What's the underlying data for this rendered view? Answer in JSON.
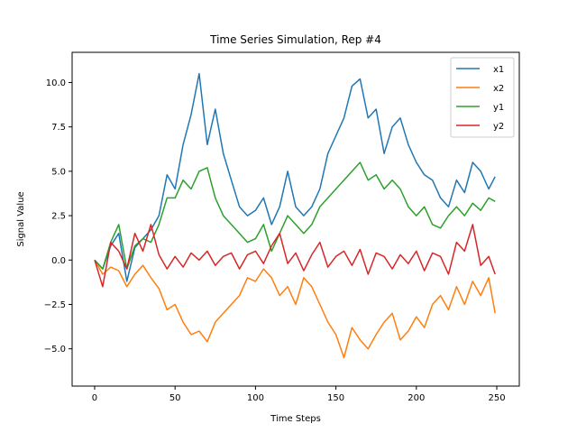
{
  "chart_data": {
    "type": "line",
    "title": "Time Series Simulation, Rep #4",
    "xlabel": "Time Steps",
    "ylabel": "Signal Value",
    "xlim": [
      -14,
      264
    ],
    "ylim": [
      -7.1,
      11.7
    ],
    "xticks": [
      0,
      50,
      100,
      150,
      200,
      250
    ],
    "yticks": [
      -5.0,
      -2.5,
      0.0,
      2.5,
      5.0,
      7.5,
      10.0
    ],
    "ytick_labels": [
      "−5.0",
      "−2.5",
      "0.0",
      "2.5",
      "5.0",
      "7.5",
      "10.0"
    ],
    "legend_position": "top-right",
    "grid": false,
    "series": [
      {
        "name": "x1",
        "color": "#1f77b4",
        "x": [
          0,
          5,
          10,
          15,
          20,
          25,
          30,
          35,
          40,
          45,
          50,
          55,
          60,
          65,
          70,
          75,
          80,
          85,
          90,
          95,
          100,
          105,
          110,
          115,
          120,
          125,
          130,
          135,
          140,
          145,
          150,
          155,
          160,
          165,
          170,
          175,
          180,
          185,
          190,
          195,
          200,
          205,
          210,
          215,
          220,
          225,
          230,
          235,
          240,
          245,
          249
        ],
        "y": [
          0.0,
          -0.5,
          0.8,
          1.5,
          -1.2,
          0.7,
          1.2,
          1.7,
          2.5,
          4.8,
          4.0,
          6.5,
          8.2,
          10.5,
          6.5,
          8.5,
          6.0,
          4.5,
          3.0,
          2.5,
          2.8,
          3.5,
          2.0,
          3.0,
          5.0,
          3.0,
          2.5,
          3.0,
          4.0,
          6.0,
          7.0,
          8.0,
          9.8,
          10.2,
          8.0,
          8.5,
          6.0,
          7.5,
          8.0,
          6.5,
          5.5,
          4.8,
          4.5,
          3.5,
          3.0,
          4.5,
          3.8,
          5.5,
          5.0,
          4.0,
          4.7
        ]
      },
      {
        "name": "x2",
        "color": "#ff7f0e",
        "x": [
          0,
          5,
          10,
          15,
          20,
          25,
          30,
          35,
          40,
          45,
          50,
          55,
          60,
          65,
          70,
          75,
          80,
          85,
          90,
          95,
          100,
          105,
          110,
          115,
          120,
          125,
          130,
          135,
          140,
          145,
          150,
          155,
          160,
          165,
          170,
          175,
          180,
          185,
          190,
          195,
          200,
          205,
          210,
          215,
          220,
          225,
          230,
          235,
          240,
          245,
          249
        ],
        "y": [
          0.0,
          -0.8,
          -0.4,
          -0.6,
          -1.5,
          -0.8,
          -0.3,
          -1.0,
          -1.6,
          -2.8,
          -2.5,
          -3.5,
          -4.2,
          -4.0,
          -4.6,
          -3.5,
          -3.0,
          -2.5,
          -2.0,
          -1.0,
          -1.2,
          -0.5,
          -1.0,
          -2.0,
          -1.5,
          -2.5,
          -1.0,
          -1.5,
          -2.5,
          -3.5,
          -4.2,
          -5.5,
          -3.8,
          -4.5,
          -5.0,
          -4.2,
          -3.5,
          -3.0,
          -4.5,
          -4.0,
          -3.2,
          -3.8,
          -2.5,
          -2.0,
          -2.8,
          -1.5,
          -2.5,
          -1.2,
          -2.0,
          -1.0,
          -3.0
        ]
      },
      {
        "name": "y1",
        "color": "#2ca02c",
        "x": [
          0,
          5,
          10,
          15,
          20,
          25,
          30,
          35,
          40,
          45,
          50,
          55,
          60,
          65,
          70,
          75,
          80,
          85,
          90,
          95,
          100,
          105,
          110,
          115,
          120,
          125,
          130,
          135,
          140,
          145,
          150,
          155,
          160,
          165,
          170,
          175,
          180,
          185,
          190,
          195,
          200,
          205,
          210,
          215,
          220,
          225,
          230,
          235,
          240,
          245,
          249
        ],
        "y": [
          0.0,
          -0.5,
          1.0,
          2.0,
          -0.5,
          0.8,
          1.2,
          1.0,
          2.0,
          3.5,
          3.5,
          4.5,
          4.0,
          5.0,
          5.2,
          3.5,
          2.5,
          2.0,
          1.5,
          1.0,
          1.2,
          2.0,
          0.5,
          1.5,
          2.5,
          2.0,
          1.5,
          2.0,
          3.0,
          3.5,
          4.0,
          4.5,
          5.0,
          5.5,
          4.5,
          4.8,
          4.0,
          4.5,
          4.0,
          3.0,
          2.5,
          3.0,
          2.0,
          1.8,
          2.5,
          3.0,
          2.5,
          3.2,
          2.8,
          3.5,
          3.3
        ]
      },
      {
        "name": "y2",
        "color": "#d62728",
        "x": [
          0,
          5,
          10,
          15,
          20,
          25,
          30,
          35,
          40,
          45,
          50,
          55,
          60,
          65,
          70,
          75,
          80,
          85,
          90,
          95,
          100,
          105,
          110,
          115,
          120,
          125,
          130,
          135,
          140,
          145,
          150,
          155,
          160,
          165,
          170,
          175,
          180,
          185,
          190,
          195,
          200,
          205,
          210,
          215,
          220,
          225,
          230,
          235,
          240,
          245,
          249
        ],
        "y": [
          0.0,
          -1.5,
          1.0,
          0.5,
          -0.5,
          1.5,
          0.5,
          2.0,
          0.3,
          -0.5,
          0.2,
          -0.4,
          0.4,
          0.0,
          0.5,
          -0.3,
          0.2,
          0.4,
          -0.5,
          0.3,
          0.5,
          -0.2,
          0.8,
          1.5,
          -0.2,
          0.4,
          -0.6,
          0.3,
          1.0,
          -0.4,
          0.2,
          0.5,
          -0.3,
          0.6,
          -0.8,
          0.4,
          0.2,
          -0.5,
          0.3,
          -0.2,
          0.5,
          -0.6,
          0.4,
          0.2,
          -0.8,
          1.0,
          0.5,
          2.0,
          -0.3,
          0.2,
          -0.8
        ]
      }
    ]
  }
}
